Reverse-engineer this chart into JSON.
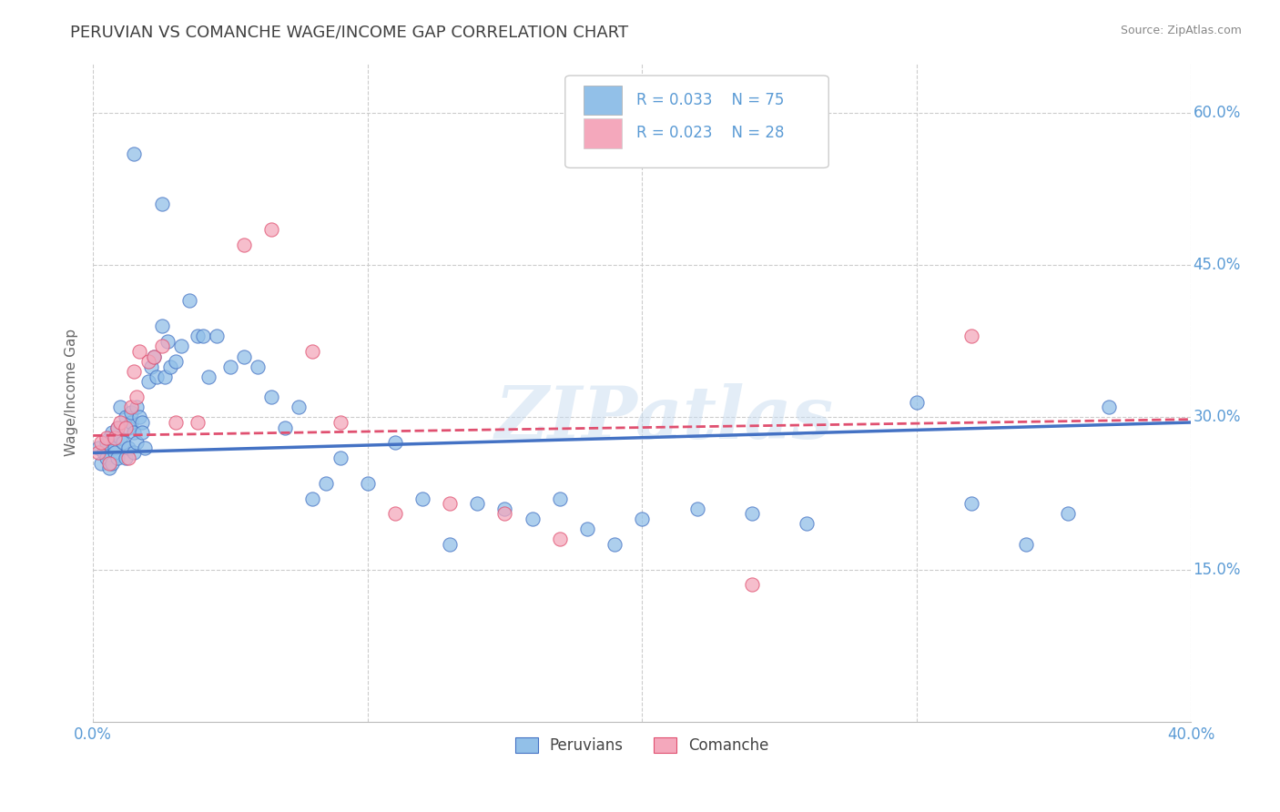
{
  "title": "PERUVIAN VS COMANCHE WAGE/INCOME GAP CORRELATION CHART",
  "source_text": "Source: ZipAtlas.com",
  "ylabel": "Wage/Income Gap",
  "xlim": [
    0.0,
    0.4
  ],
  "ylim": [
    0.0,
    0.65
  ],
  "xticks": [
    0.0,
    0.1,
    0.2,
    0.3,
    0.4
  ],
  "xtick_labels": [
    "0.0%",
    "",
    "",
    "",
    "40.0%"
  ],
  "ytick_positions": [
    0.15,
    0.3,
    0.45,
    0.6
  ],
  "ytick_labels": [
    "15.0%",
    "30.0%",
    "45.0%",
    "60.0%"
  ],
  "background_color": "#ffffff",
  "grid_color": "#cccccc",
  "title_color": "#404040",
  "title_fontsize": 13,
  "axis_label_color": "#5b9bd5",
  "legend_R1": "R = 0.033",
  "legend_N1": "N = 75",
  "legend_R2": "R = 0.023",
  "legend_N2": "N = 28",
  "peruvian_color": "#92c0e8",
  "comanche_color": "#f4a8bc",
  "trend1_color": "#4472c4",
  "trend2_color": "#e05070",
  "watermark": "ZIPatlas",
  "peruvian_x": [
    0.002,
    0.003,
    0.004,
    0.005,
    0.005,
    0.006,
    0.006,
    0.007,
    0.007,
    0.008,
    0.008,
    0.009,
    0.009,
    0.01,
    0.01,
    0.011,
    0.012,
    0.012,
    0.013,
    0.013,
    0.014,
    0.014,
    0.015,
    0.015,
    0.016,
    0.016,
    0.017,
    0.018,
    0.018,
    0.019,
    0.02,
    0.021,
    0.022,
    0.023,
    0.025,
    0.026,
    0.027,
    0.028,
    0.03,
    0.032,
    0.035,
    0.038,
    0.04,
    0.042,
    0.045,
    0.05,
    0.055,
    0.06,
    0.065,
    0.07,
    0.075,
    0.08,
    0.085,
    0.09,
    0.1,
    0.11,
    0.12,
    0.13,
    0.14,
    0.15,
    0.16,
    0.17,
    0.18,
    0.19,
    0.2,
    0.22,
    0.24,
    0.26,
    0.3,
    0.32,
    0.34,
    0.355,
    0.37,
    0.025,
    0.015
  ],
  "peruvian_y": [
    0.27,
    0.255,
    0.265,
    0.26,
    0.275,
    0.28,
    0.25,
    0.285,
    0.255,
    0.27,
    0.265,
    0.29,
    0.26,
    0.28,
    0.31,
    0.275,
    0.26,
    0.3,
    0.27,
    0.29,
    0.295,
    0.305,
    0.285,
    0.265,
    0.31,
    0.275,
    0.3,
    0.295,
    0.285,
    0.27,
    0.335,
    0.35,
    0.36,
    0.34,
    0.39,
    0.34,
    0.375,
    0.35,
    0.355,
    0.37,
    0.415,
    0.38,
    0.38,
    0.34,
    0.38,
    0.35,
    0.36,
    0.35,
    0.32,
    0.29,
    0.31,
    0.22,
    0.235,
    0.26,
    0.235,
    0.275,
    0.22,
    0.175,
    0.215,
    0.21,
    0.2,
    0.22,
    0.19,
    0.175,
    0.2,
    0.21,
    0.205,
    0.195,
    0.315,
    0.215,
    0.175,
    0.205,
    0.31,
    0.51,
    0.56
  ],
  "comanche_x": [
    0.002,
    0.003,
    0.005,
    0.006,
    0.008,
    0.009,
    0.01,
    0.012,
    0.013,
    0.014,
    0.015,
    0.016,
    0.017,
    0.02,
    0.022,
    0.025,
    0.03,
    0.038,
    0.055,
    0.065,
    0.08,
    0.09,
    0.11,
    0.13,
    0.15,
    0.17,
    0.24,
    0.32
  ],
  "comanche_y": [
    0.265,
    0.275,
    0.28,
    0.255,
    0.28,
    0.29,
    0.295,
    0.29,
    0.26,
    0.31,
    0.345,
    0.32,
    0.365,
    0.355,
    0.36,
    0.37,
    0.295,
    0.295,
    0.47,
    0.485,
    0.365,
    0.295,
    0.205,
    0.215,
    0.205,
    0.18,
    0.135,
    0.38
  ]
}
